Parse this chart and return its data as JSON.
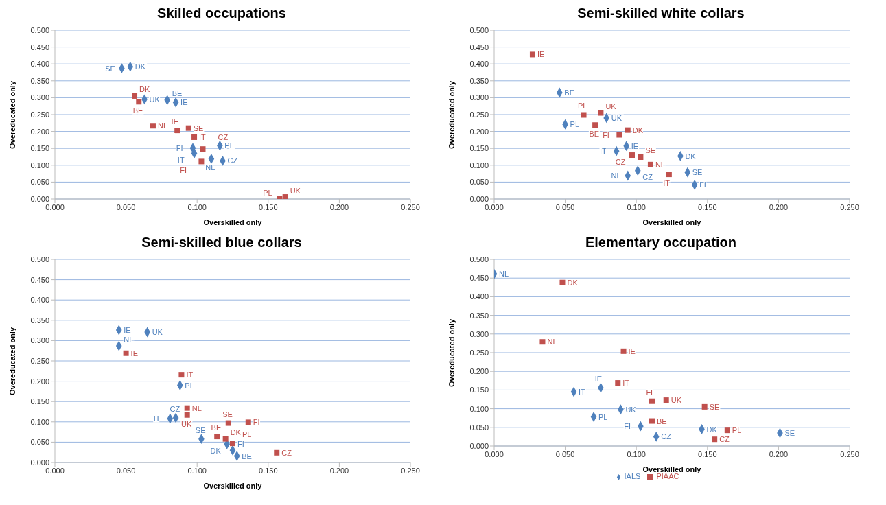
{
  "chart_data": [
    {
      "type": "scatter",
      "title": "Skilled occupations",
      "xlabel": "Overskilled only",
      "ylabel": "Overeducated only",
      "grid": "y",
      "xlim": [
        0,
        0.25
      ],
      "xticks": [
        {
          "value": 0,
          "label": "0.000"
        },
        {
          "value": 0.05,
          "label": "0.050"
        },
        {
          "value": 0.1,
          "label": "0.100"
        },
        {
          "value": 0.15,
          "label": "0.150"
        },
        {
          "value": 0.2,
          "label": "0.200"
        },
        {
          "value": 0.25,
          "label": "0.250"
        }
      ],
      "ylim": [
        0,
        0.5
      ],
      "yticks": [
        {
          "value": 0,
          "label": "0.000"
        },
        {
          "value": 0.05,
          "label": "0.050"
        },
        {
          "value": 0.1,
          "label": "0.100"
        },
        {
          "value": 0.15,
          "label": "0.150"
        },
        {
          "value": 0.2,
          "label": "0.200"
        },
        {
          "value": 0.25,
          "label": "0.250"
        },
        {
          "value": 0.3,
          "label": "0.300"
        },
        {
          "value": 0.35,
          "label": "0.350"
        },
        {
          "value": 0.4,
          "label": "0.400"
        },
        {
          "value": 0.45,
          "label": "0.450"
        },
        {
          "value": 0.5,
          "label": "0.500"
        }
      ],
      "series": [
        {
          "color": "#4f81bd",
          "marker": "diamond",
          "x": [
            0.047,
            0.053,
            0.063,
            0.079,
            0.085,
            0.097,
            0.098,
            0.11,
            0.116,
            0.118
          ],
          "values": [
            0.387,
            0.392,
            0.295,
            0.293,
            0.286,
            0.151,
            0.135,
            0.119,
            0.158,
            0.113
          ]
        },
        {
          "color": "#c0504d",
          "marker": "square",
          "x": [
            0.056,
            0.059,
            0.069,
            0.086,
            0.094,
            0.098,
            0.104,
            0.103,
            0.158,
            0.162
          ],
          "values": [
            0.305,
            0.288,
            0.217,
            0.203,
            0.21,
            0.183,
            0.148,
            0.111,
            0,
            0.006
          ]
        }
      ],
      "annotations": [
        {
          "text": "SE",
          "x": 0.047,
          "y": 0.387
        },
        {
          "text": "DK",
          "x": 0.053,
          "y": 0.392
        },
        {
          "text": "UK",
          "x": 0.063,
          "y": 0.295
        },
        {
          "text": "BE",
          "x": 0.079,
          "y": 0.293
        },
        {
          "text": "IE",
          "x": 0.085,
          "y": 0.286
        },
        {
          "text": "FI",
          "x": 0.097,
          "y": 0.151
        },
        {
          "text": "IT",
          "x": 0.098,
          "y": 0.135
        },
        {
          "text": "NL",
          "x": 0.11,
          "y": 0.119
        },
        {
          "text": "PL",
          "x": 0.116,
          "y": 0.158
        },
        {
          "text": "CZ",
          "x": 0.118,
          "y": 0.113
        },
        {
          "text": "DK",
          "x": 0.056,
          "y": 0.305
        },
        {
          "text": "BE",
          "x": 0.059,
          "y": 0.288
        },
        {
          "text": "NL",
          "x": 0.069,
          "y": 0.217
        },
        {
          "text": "IE",
          "x": 0.086,
          "y": 0.203
        },
        {
          "text": "SE",
          "x": 0.094,
          "y": 0.21
        },
        {
          "text": "IT",
          "x": 0.098,
          "y": 0.183
        },
        {
          "text": "CZ",
          "x": 0.104,
          "y": 0.148
        },
        {
          "text": "FI",
          "x": 0.103,
          "y": 0.111
        },
        {
          "text": "PL",
          "x": 0.158,
          "y": 0
        },
        {
          "text": "UK",
          "x": 0.162,
          "y": 0.006
        }
      ]
    },
    {
      "type": "scatter",
      "title": "Semi-skilled white collars",
      "xlabel": "Overskilled only",
      "ylabel": "Overeducated only",
      "grid": "y",
      "xlim": [
        0,
        0.25
      ],
      "xticks": [
        {
          "value": 0,
          "label": "0.000"
        },
        {
          "value": 0.05,
          "label": "0.050"
        },
        {
          "value": 0.1,
          "label": "0.100"
        },
        {
          "value": 0.15,
          "label": "0.150"
        },
        {
          "value": 0.2,
          "label": "0.200"
        },
        {
          "value": 0.25,
          "label": "0.250"
        }
      ],
      "ylim": [
        0,
        0.5
      ],
      "yticks": [
        {
          "value": 0,
          "label": "0.000"
        },
        {
          "value": 0.05,
          "label": "0.050"
        },
        {
          "value": 0.1,
          "label": "0.100"
        },
        {
          "value": 0.15,
          "label": "0.150"
        },
        {
          "value": 0.2,
          "label": "0.200"
        },
        {
          "value": 0.25,
          "label": "0.250"
        },
        {
          "value": 0.3,
          "label": "0.300"
        },
        {
          "value": 0.35,
          "label": "0.350"
        },
        {
          "value": 0.4,
          "label": "0.400"
        },
        {
          "value": 0.45,
          "label": "0.450"
        },
        {
          "value": 0.5,
          "label": "0.500"
        }
      ],
      "series": [
        {
          "color": "#4f81bd",
          "marker": "diamond",
          "x": [
            0.046,
            0.05,
            0.079,
            0.086,
            0.093,
            0.094,
            0.101,
            0.131,
            0.136,
            0.141
          ],
          "values": [
            0.315,
            0.221,
            0.24,
            0.142,
            0.157,
            0.069,
            0.084,
            0.127,
            0.079,
            0.042
          ]
        },
        {
          "color": "#c0504d",
          "marker": "square",
          "x": [
            0.027,
            0.063,
            0.075,
            0.071,
            0.088,
            0.094,
            0.097,
            0.103,
            0.11,
            0.123
          ],
          "values": [
            0.428,
            0.249,
            0.255,
            0.219,
            0.19,
            0.204,
            0.13,
            0.124,
            0.102,
            0.073
          ]
        }
      ],
      "annotations": [
        {
          "text": "BE",
          "x": 0.046,
          "y": 0.315
        },
        {
          "text": "PL",
          "x": 0.05,
          "y": 0.221
        },
        {
          "text": "UK",
          "x": 0.079,
          "y": 0.24
        },
        {
          "text": "IT",
          "x": 0.086,
          "y": 0.142
        },
        {
          "text": "IE",
          "x": 0.093,
          "y": 0.157
        },
        {
          "text": "NL",
          "x": 0.094,
          "y": 0.069
        },
        {
          "text": "CZ",
          "x": 0.101,
          "y": 0.084
        },
        {
          "text": "DK",
          "x": 0.131,
          "y": 0.127
        },
        {
          "text": "SE",
          "x": 0.136,
          "y": 0.079
        },
        {
          "text": "FI",
          "x": 0.141,
          "y": 0.042
        },
        {
          "text": "IE",
          "x": 0.027,
          "y": 0.428
        },
        {
          "text": "PL",
          "x": 0.063,
          "y": 0.249
        },
        {
          "text": "UK",
          "x": 0.075,
          "y": 0.255
        },
        {
          "text": "BE",
          "x": 0.071,
          "y": 0.219
        },
        {
          "text": "FI",
          "x": 0.088,
          "y": 0.19
        },
        {
          "text": "DK",
          "x": 0.094,
          "y": 0.204
        },
        {
          "text": "CZ",
          "x": 0.097,
          "y": 0.13
        },
        {
          "text": "SE",
          "x": 0.103,
          "y": 0.124
        },
        {
          "text": "NL",
          "x": 0.11,
          "y": 0.102
        },
        {
          "text": "IT",
          "x": 0.123,
          "y": 0.073
        }
      ]
    },
    {
      "type": "scatter",
      "title": "Semi-skilled blue collars",
      "xlabel": "Overskilled only",
      "ylabel": "Overeducated only",
      "grid": "y",
      "xlim": [
        0,
        0.25
      ],
      "xticks": [
        {
          "value": 0,
          "label": "0.000"
        },
        {
          "value": 0.05,
          "label": "0.050"
        },
        {
          "value": 0.1,
          "label": "0.100"
        },
        {
          "value": 0.15,
          "label": "0.150"
        },
        {
          "value": 0.2,
          "label": "0.200"
        },
        {
          "value": 0.25,
          "label": "0.250"
        }
      ],
      "ylim": [
        0,
        0.5
      ],
      "yticks": [
        {
          "value": 0,
          "label": "0.000"
        },
        {
          "value": 0.05,
          "label": "0.050"
        },
        {
          "value": 0.1,
          "label": "0.100"
        },
        {
          "value": 0.15,
          "label": "0.150"
        },
        {
          "value": 0.2,
          "label": "0.200"
        },
        {
          "value": 0.25,
          "label": "0.250"
        },
        {
          "value": 0.3,
          "label": "0.300"
        },
        {
          "value": 0.35,
          "label": "0.350"
        },
        {
          "value": 0.4,
          "label": "0.400"
        },
        {
          "value": 0.45,
          "label": "0.450"
        },
        {
          "value": 0.5,
          "label": "0.500"
        }
      ],
      "series": [
        {
          "color": "#4f81bd",
          "marker": "diamond",
          "x": [
            0.045,
            0.045,
            0.065,
            0.088,
            0.081,
            0.085,
            0.103,
            0.121,
            0.125,
            0.128
          ],
          "values": [
            0.326,
            0.287,
            0.321,
            0.19,
            0.108,
            0.11,
            0.058,
            0.045,
            0.03,
            0.016
          ]
        },
        {
          "color": "#c0504d",
          "marker": "square",
          "x": [
            0.05,
            0.089,
            0.093,
            0.093,
            0.114,
            0.122,
            0.12,
            0.125,
            0.136,
            0.156
          ],
          "values": [
            0.269,
            0.216,
            0.134,
            0.117,
            0.064,
            0.097,
            0.058,
            0.047,
            0.099,
            0.024
          ]
        }
      ],
      "annotations": [
        {
          "text": "IE",
          "x": 0.045,
          "y": 0.326
        },
        {
          "text": "NL",
          "x": 0.045,
          "y": 0.287
        },
        {
          "text": "UK",
          "x": 0.065,
          "y": 0.321
        },
        {
          "text": "PL",
          "x": 0.088,
          "y": 0.19
        },
        {
          "text": "IT",
          "x": 0.081,
          "y": 0.108
        },
        {
          "text": "CZ",
          "x": 0.085,
          "y": 0.11
        },
        {
          "text": "SE",
          "x": 0.103,
          "y": 0.058
        },
        {
          "text": "DK",
          "x": 0.121,
          "y": 0.045
        },
        {
          "text": "FI",
          "x": 0.125,
          "y": 0.03
        },
        {
          "text": "BE",
          "x": 0.128,
          "y": 0.016
        },
        {
          "text": "IE",
          "x": 0.05,
          "y": 0.269
        },
        {
          "text": "IT",
          "x": 0.089,
          "y": 0.216
        },
        {
          "text": "NL",
          "x": 0.093,
          "y": 0.134
        },
        {
          "text": "UK",
          "x": 0.093,
          "y": 0.117
        },
        {
          "text": "BE",
          "x": 0.114,
          "y": 0.064
        },
        {
          "text": "SE",
          "x": 0.122,
          "y": 0.097
        },
        {
          "text": "DK",
          "x": 0.12,
          "y": 0.058
        },
        {
          "text": "PL",
          "x": 0.125,
          "y": 0.047
        },
        {
          "text": "FI",
          "x": 0.136,
          "y": 0.099
        },
        {
          "text": "CZ",
          "x": 0.156,
          "y": 0.024
        }
      ]
    },
    {
      "type": "scatter",
      "title": "Elementary occupation",
      "xlabel": "Overskilled only",
      "ylabel": "Overeducated only",
      "grid": "y",
      "legend": "bottom",
      "xlim": [
        0,
        0.25
      ],
      "xticks": [
        {
          "value": 0,
          "label": "0.000"
        },
        {
          "value": 0.05,
          "label": "0.050"
        },
        {
          "value": 0.1,
          "label": "0.100"
        },
        {
          "value": 0.15,
          "label": "0.150"
        },
        {
          "value": 0.2,
          "label": "0.200"
        },
        {
          "value": 0.25,
          "label": "0.250"
        }
      ],
      "ylim": [
        0,
        0.5
      ],
      "yticks": [
        {
          "value": 0,
          "label": "0.000"
        },
        {
          "value": 0.05,
          "label": "0.050"
        },
        {
          "value": 0.1,
          "label": "0.100"
        },
        {
          "value": 0.15,
          "label": "0.150"
        },
        {
          "value": 0.2,
          "label": "0.200"
        },
        {
          "value": 0.25,
          "label": "0.250"
        },
        {
          "value": 0.3,
          "label": "0.300"
        },
        {
          "value": 0.35,
          "label": "0.350"
        },
        {
          "value": 0.4,
          "label": "0.400"
        },
        {
          "value": 0.45,
          "label": "0.450"
        },
        {
          "value": 0.5,
          "label": "0.500"
        }
      ],
      "series": [
        {
          "name": "IALS",
          "color": "#4f81bd",
          "marker": "diamond",
          "x": [
            0,
            0.056,
            0.075,
            0.07,
            0.089,
            0.103,
            0.114,
            0.146,
            0.201
          ],
          "values": [
            0.461,
            0.145,
            0.156,
            0.078,
            0.098,
            0.053,
            0.025,
            0.045,
            0.035
          ]
        },
        {
          "name": "PIAAC",
          "color": "#c0504d",
          "marker": "square",
          "x": [
            0.048,
            0.034,
            0.091,
            0.087,
            0.111,
            0.121,
            0.111,
            0.148,
            0.164,
            0.155
          ],
          "values": [
            0.438,
            0.279,
            0.254,
            0.169,
            0.12,
            0.123,
            0.067,
            0.105,
            0.042,
            0.018
          ]
        }
      ],
      "annotations": [
        {
          "text": "NL",
          "x": 0,
          "y": 0.461
        },
        {
          "text": "IT",
          "x": 0.056,
          "y": 0.145
        },
        {
          "text": "IE",
          "x": 0.075,
          "y": 0.156
        },
        {
          "text": "PL",
          "x": 0.07,
          "y": 0.078
        },
        {
          "text": "UK",
          "x": 0.089,
          "y": 0.098
        },
        {
          "text": "FI",
          "x": 0.103,
          "y": 0.053
        },
        {
          "text": "CZ",
          "x": 0.114,
          "y": 0.025
        },
        {
          "text": "DK",
          "x": 0.146,
          "y": 0.045
        },
        {
          "text": "SE",
          "x": 0.201,
          "y": 0.035
        },
        {
          "text": "DK",
          "x": 0.048,
          "y": 0.438
        },
        {
          "text": "NL",
          "x": 0.034,
          "y": 0.279
        },
        {
          "text": "IE",
          "x": 0.091,
          "y": 0.254
        },
        {
          "text": "IT",
          "x": 0.087,
          "y": 0.169
        },
        {
          "text": "FI",
          "x": 0.111,
          "y": 0.12
        },
        {
          "text": "UK",
          "x": 0.121,
          "y": 0.123
        },
        {
          "text": "BE",
          "x": 0.111,
          "y": 0.067
        },
        {
          "text": "SE",
          "x": 0.148,
          "y": 0.105
        },
        {
          "text": "PL",
          "x": 0.164,
          "y": 0.042
        },
        {
          "text": "CZ",
          "x": 0.155,
          "y": 0.018
        }
      ]
    }
  ]
}
